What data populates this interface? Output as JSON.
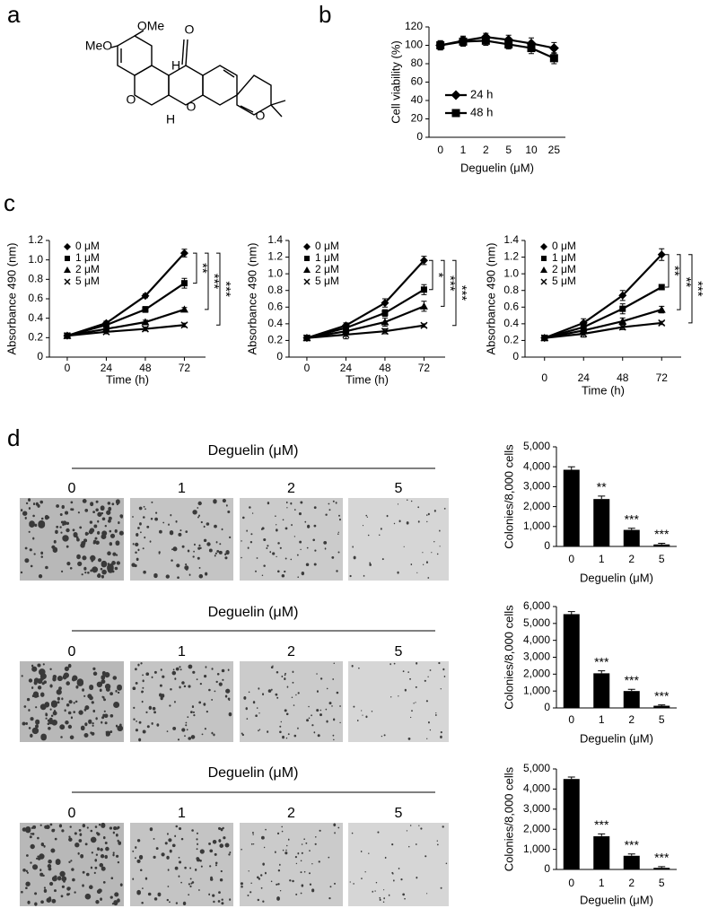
{
  "panel_labels": [
    "a",
    "b",
    "c",
    "d"
  ],
  "structure": {
    "labels": [
      "OMe",
      "MeO",
      "O",
      "H",
      "H",
      "O",
      "O",
      "O"
    ]
  },
  "colony_assays": [
    {
      "title": "Deguelin (μM)",
      "doses": [
        "0",
        "1",
        "2",
        "5"
      ]
    },
    {
      "title": "Deguelin (μM)",
      "doses": [
        "0",
        "1",
        "2",
        "5"
      ]
    },
    {
      "title": "Deguelin (μM)",
      "doses": [
        "0",
        "1",
        "2",
        "5"
      ]
    }
  ],
  "chart_data": [
    {
      "type": "line",
      "y_label": "Cell viability (%)",
      "x_label": "Deguelin (μM)",
      "categories": [
        "0",
        "1",
        "2",
        "5",
        "10",
        "25"
      ],
      "ylim": [
        0,
        120
      ],
      "yticks": [
        0,
        20,
        40,
        60,
        80,
        100,
        120
      ],
      "series": [
        {
          "name": "24 h",
          "color": "#000000",
          "marker": "diamond",
          "values": [
            100,
            105,
            109,
            106,
            102,
            97
          ],
          "errors": [
            5,
            5,
            4,
            5,
            6,
            6
          ]
        },
        {
          "name": "48 h",
          "color": "#000000",
          "marker": "square",
          "values": [
            100,
            104,
            105,
            101,
            97,
            86
          ],
          "errors": [
            5,
            5,
            5,
            5,
            6,
            6
          ]
        }
      ]
    },
    {
      "type": "line",
      "y_label": "Absorbance 490 (nm)",
      "x_label": "Time (h)",
      "x": [
        0,
        24,
        48,
        72
      ],
      "xlim": [
        -11,
        85
      ],
      "xticks": [
        0,
        24,
        48,
        72
      ],
      "ylim": [
        0,
        1.2
      ],
      "yticks": [
        0,
        0.2,
        0.4,
        0.6,
        0.8,
        {
          "value": 1,
          "label": "1.0"
        },
        1.2
      ],
      "significance": [
        "**",
        "***",
        "***"
      ],
      "series": [
        {
          "name": "0 μM",
          "color": "#000000",
          "marker": "diamond",
          "values": [
            0.22,
            0.35,
            0.63,
            1.07
          ],
          "errors": [
            0.02,
            0.02,
            0.02,
            0.04
          ]
        },
        {
          "name": "1 μM",
          "color": "#000000",
          "marker": "square",
          "values": [
            0.22,
            0.33,
            0.49,
            0.76
          ],
          "errors": [
            0.02,
            0.02,
            0.03,
            0.05
          ]
        },
        {
          "name": "2 μM",
          "color": "#000000",
          "marker": "triangle",
          "values": [
            0.22,
            0.29,
            0.36,
            0.49
          ],
          "errors": [
            0.02,
            0.02,
            0.02,
            0.02
          ]
        },
        {
          "name": "5 μM",
          "color": "#000000",
          "marker": "x",
          "values": [
            0.22,
            0.26,
            0.29,
            0.33
          ],
          "errors": [
            0.02,
            0.02,
            0.02,
            0.02
          ]
        }
      ]
    },
    {
      "type": "line",
      "y_label": "Absorbance 490 (nm)",
      "x_label": "Time (h)",
      "x": [
        0,
        24,
        48,
        72
      ],
      "xlim": [
        -11,
        85
      ],
      "xticks": [
        0,
        24,
        48,
        72
      ],
      "ylim": [
        0,
        1.4
      ],
      "yticks": [
        0,
        0.2,
        0.4,
        0.6,
        0.8,
        {
          "value": 1,
          "label": "1.0"
        },
        1.2,
        1.4
      ],
      "significance": [
        "*",
        "***",
        "***"
      ],
      "series": [
        {
          "name": "0 μM",
          "color": "#000000",
          "marker": "diamond",
          "values": [
            0.23,
            0.38,
            0.65,
            1.16
          ],
          "errors": [
            0.02,
            0.03,
            0.05,
            0.05
          ]
        },
        {
          "name": "1 μM",
          "color": "#000000",
          "marker": "square",
          "values": [
            0.23,
            0.35,
            0.53,
            0.81
          ],
          "errors": [
            0.02,
            0.03,
            0.04,
            0.06
          ]
        },
        {
          "name": "2 μM",
          "color": "#000000",
          "marker": "triangle",
          "values": [
            0.23,
            0.31,
            0.42,
            0.61
          ],
          "errors": [
            0.02,
            0.04,
            0.05,
            0.06
          ]
        },
        {
          "name": "5 μM",
          "color": "#000000",
          "marker": "x",
          "values": [
            0.23,
            0.27,
            0.31,
            0.38
          ],
          "errors": [
            0.02,
            0.05,
            0.03,
            0.02
          ]
        }
      ]
    },
    {
      "type": "line",
      "y_label": "Absorbance 490 (nm)",
      "x_label": "Time (h)",
      "x": [
        0,
        24,
        48,
        72
      ],
      "xlim": [
        -12,
        84
      ],
      "xticks": [
        0,
        24,
        48,
        72
      ],
      "ylim": [
        0,
        1.4
      ],
      "yticks": [
        0,
        0.2,
        0.4,
        0.6,
        0.8,
        {
          "value": 1,
          "label": "1.0"
        },
        1.2,
        1.4
      ],
      "significance": [
        "**",
        "**",
        "***"
      ],
      "series": [
        {
          "name": "0 μM",
          "color": "#000000",
          "marker": "diamond",
          "values": [
            0.23,
            0.41,
            0.74,
            1.23
          ],
          "errors": [
            0.03,
            0.05,
            0.06,
            0.07
          ]
        },
        {
          "name": "1 μM",
          "color": "#000000",
          "marker": "square",
          "values": [
            0.23,
            0.36,
            0.58,
            0.84
          ],
          "errors": [
            0.03,
            0.04,
            0.06,
            0.03
          ]
        },
        {
          "name": "2 μM",
          "color": "#000000",
          "marker": "triangle",
          "values": [
            0.23,
            0.32,
            0.43,
            0.57
          ],
          "errors": [
            0.03,
            0.04,
            0.04,
            0.04
          ]
        },
        {
          "name": "5 μM",
          "color": "#000000",
          "marker": "x",
          "values": [
            0.23,
            0.28,
            0.36,
            0.41
          ],
          "errors": [
            0.03,
            0.04,
            0.03,
            0.02
          ]
        }
      ]
    },
    {
      "type": "bar",
      "y_label": "Colonies/8,000 cells",
      "x_label": "Deguelin (μM)",
      "color": "#000000",
      "categories": [
        "0",
        "1",
        "2",
        "5"
      ],
      "values": [
        3850,
        2380,
        830,
        100
      ],
      "errors": [
        150,
        150,
        80,
        60
      ],
      "significance": [
        null,
        "**",
        "***",
        "***"
      ],
      "ylim": [
        0,
        5000
      ],
      "yticks": [
        0,
        {
          "value": 1000,
          "label": "1,000"
        },
        {
          "value": 2000,
          "label": "2,000"
        },
        {
          "value": 3000,
          "label": "3,000"
        },
        {
          "value": 4000,
          "label": "4,000"
        },
        {
          "value": 5000,
          "label": "5,000"
        }
      ]
    },
    {
      "type": "bar",
      "y_label": "Colonies/8,000 cells",
      "x_label": "Deguelin (μM)",
      "color": "#000000",
      "categories": [
        "0",
        "1",
        "2",
        "5"
      ],
      "values": [
        5550,
        2050,
        1000,
        130
      ],
      "errors": [
        150,
        150,
        100,
        50
      ],
      "significance": [
        null,
        "***",
        "***",
        "***"
      ],
      "ylim": [
        0,
        6000
      ],
      "yticks": [
        0,
        {
          "value": 1000,
          "label": "1,000"
        },
        {
          "value": 2000,
          "label": "2,000"
        },
        {
          "value": 3000,
          "label": "3,000"
        },
        {
          "value": 4000,
          "label": "4,000"
        },
        {
          "value": 5000,
          "label": "5,000"
        },
        {
          "value": 6000,
          "label": "6,000"
        }
      ]
    },
    {
      "type": "bar",
      "y_label": "Colonies/8,000 cells",
      "x_label": "Deguelin (μM)",
      "color": "#000000",
      "categories": [
        "0",
        "1",
        "2",
        "5"
      ],
      "values": [
        4500,
        1650,
        680,
        80
      ],
      "errors": [
        100,
        120,
        90,
        60
      ],
      "significance": [
        null,
        "***",
        "***",
        "***"
      ],
      "ylim": [
        0,
        5000
      ],
      "yticks": [
        0,
        {
          "value": 1000,
          "label": "1,000"
        },
        {
          "value": 2000,
          "label": "2,000"
        },
        {
          "value": 3000,
          "label": "3,000"
        },
        {
          "value": 4000,
          "label": "4,000"
        },
        {
          "value": 5000,
          "label": "5,000"
        }
      ]
    }
  ]
}
